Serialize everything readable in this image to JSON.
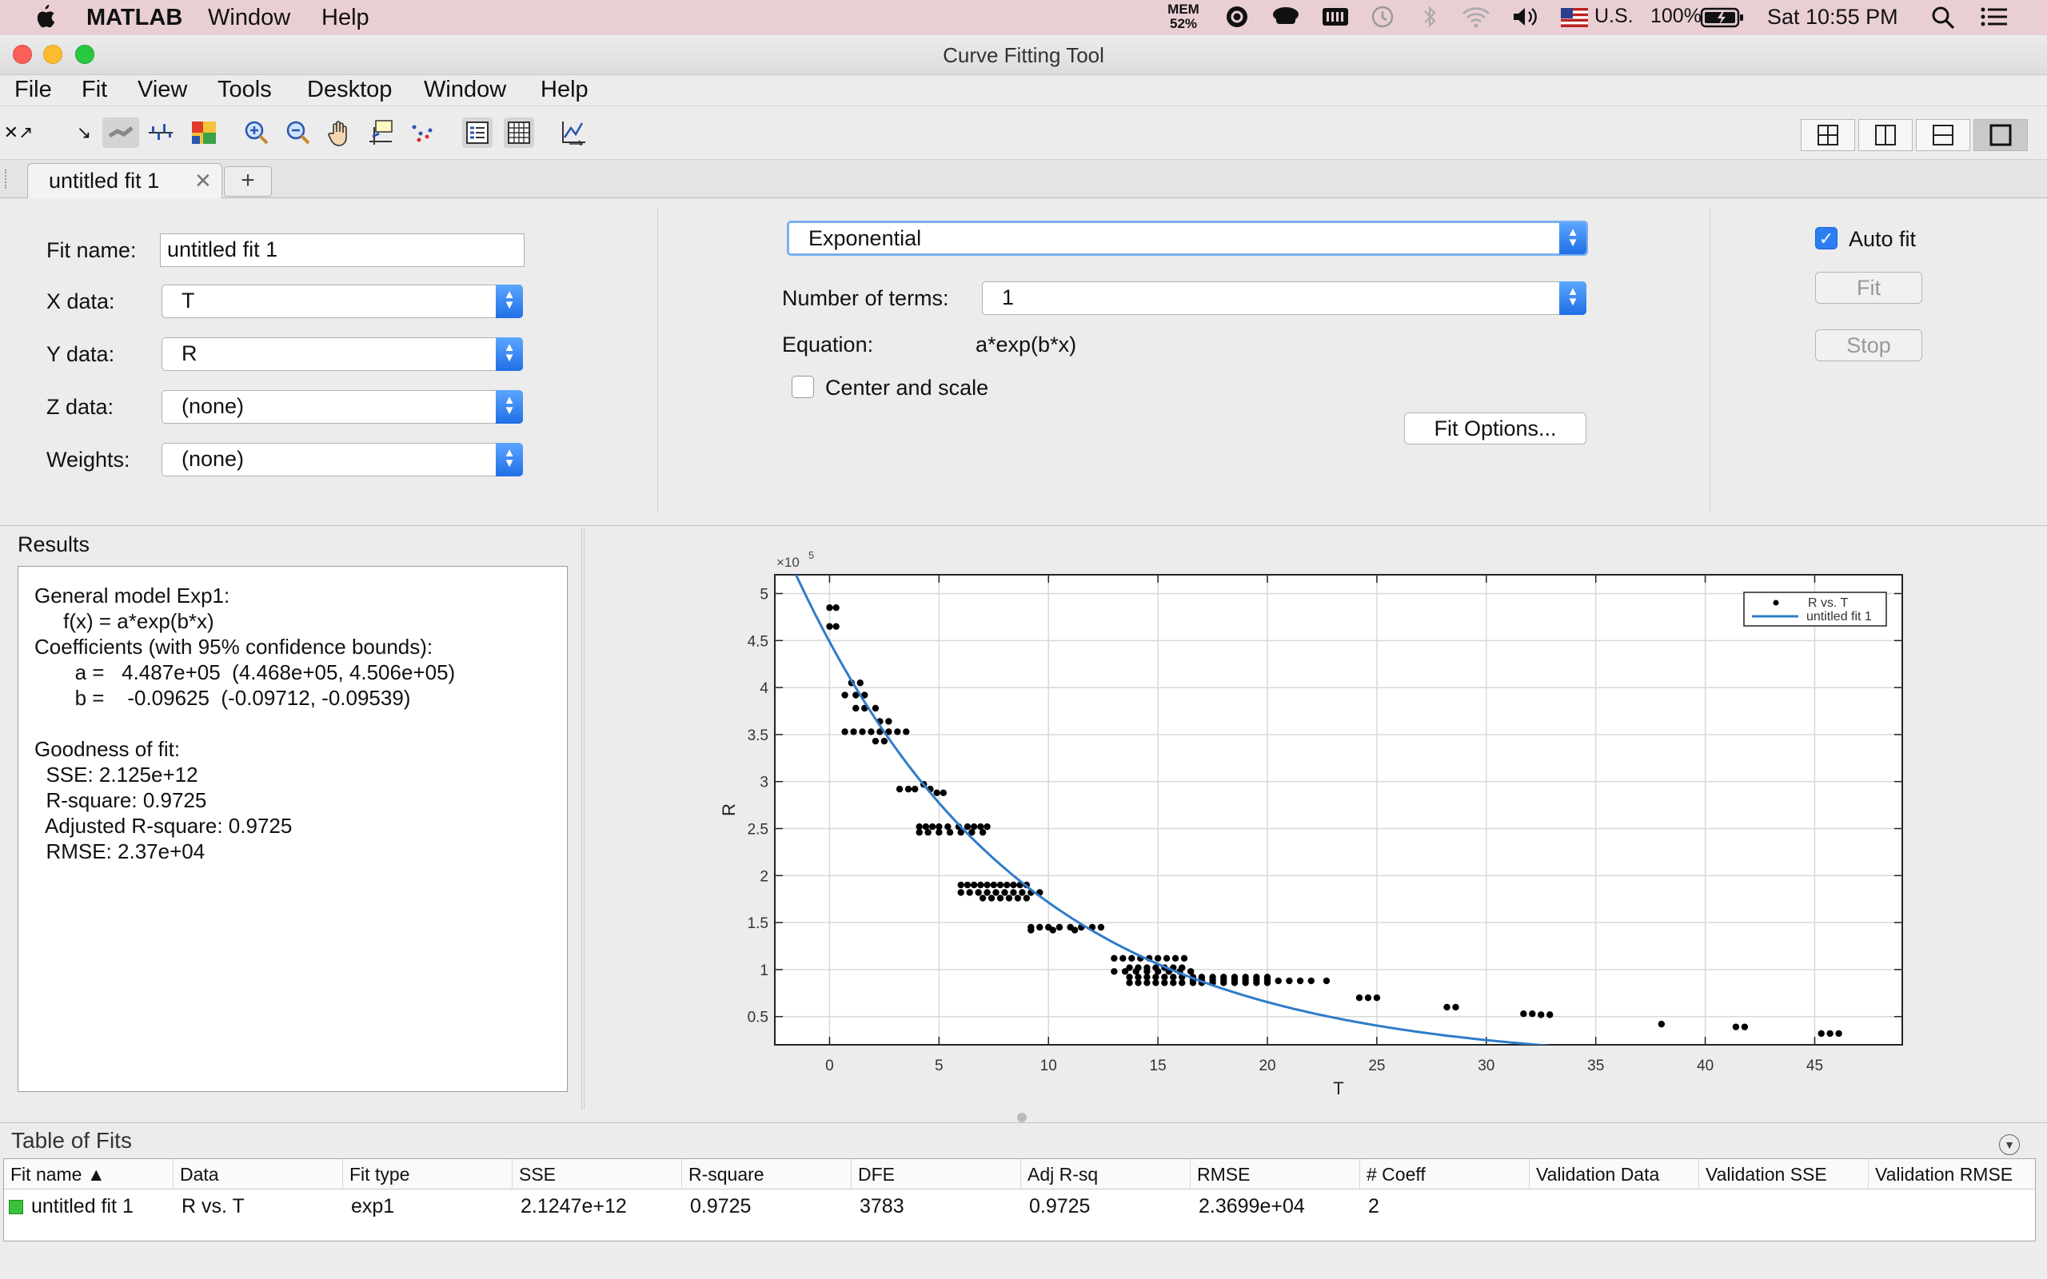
{
  "menubar": {
    "app": "MATLAB",
    "items": [
      "Window",
      "Help"
    ],
    "mem_label": "MEM",
    "mem_value": "52%",
    "input_source": "U.S.",
    "battery": "100%",
    "clock": "Sat 10:55 PM"
  },
  "window": {
    "title": "Curve Fitting Tool"
  },
  "app_menu": [
    "File",
    "Fit",
    "View",
    "Tools",
    "Desktop",
    "Window",
    "Help"
  ],
  "tabs": {
    "active_label": "untitled fit 1",
    "add_label": "+"
  },
  "settings": {
    "fit_name_label": "Fit name:",
    "fit_name_value": "untitled fit 1",
    "x_label": "X data:",
    "x_value": "T",
    "y_label": "Y data:",
    "y_value": "R",
    "z_label": "Z data:",
    "z_value": "(none)",
    "weights_label": "Weights:",
    "weights_value": "(none)",
    "fit_type": "Exponential",
    "terms_label": "Number of terms:",
    "terms_value": "1",
    "equation_label": "Equation:",
    "equation_value": "a*exp(b*x)",
    "center_scale_label": "Center and scale",
    "center_scale_checked": false,
    "fit_options_label": "Fit Options...",
    "auto_fit_label": "Auto fit",
    "auto_fit_checked": true,
    "fit_button": "Fit",
    "stop_button": "Stop"
  },
  "results": {
    "title": "Results",
    "text": "General model Exp1:\n     f(x) = a*exp(b*x)\nCoefficients (with 95% confidence bounds):\n       a =   4.487e+05  (4.468e+05, 4.506e+05)\n       b =    -0.09625  (-0.09712, -0.09539)\n\nGoodness of fit:\n  SSE: 2.125e+12\n  R-square: 0.9725\n  Adjusted R-square: 0.9725\n  RMSE: 2.37e+04"
  },
  "chart_data": {
    "type": "scatter",
    "xlabel": "T",
    "ylabel": "R",
    "y_exponent_label": "×10",
    "y_exponent_power": "5",
    "xlim": [
      -2.5,
      49
    ],
    "ylim": [
      0.2,
      5.2
    ],
    "xticks": [
      "0",
      "5",
      "10",
      "15",
      "20",
      "25",
      "30",
      "35",
      "40",
      "45"
    ],
    "yticks": [
      "0.5",
      "1",
      "1.5",
      "2",
      "2.5",
      "3",
      "3.5",
      "4",
      "4.5",
      "5"
    ],
    "grid": true,
    "legend_position": "top-right",
    "series": [
      {
        "name": "R vs. T",
        "kind": "points",
        "color": "#000000",
        "points": [
          [
            0,
            4.85
          ],
          [
            0.3,
            4.85
          ],
          [
            0,
            4.65
          ],
          [
            0.3,
            4.65
          ],
          [
            1,
            4.05
          ],
          [
            1.4,
            4.05
          ],
          [
            0.7,
            3.92
          ],
          [
            1.2,
            3.92
          ],
          [
            1.6,
            3.92
          ],
          [
            1.2,
            3.78
          ],
          [
            1.6,
            3.78
          ],
          [
            2.1,
            3.78
          ],
          [
            2.3,
            3.64
          ],
          [
            2.7,
            3.64
          ],
          [
            0.7,
            3.53
          ],
          [
            1.1,
            3.53
          ],
          [
            1.5,
            3.53
          ],
          [
            1.9,
            3.53
          ],
          [
            2.3,
            3.53
          ],
          [
            2.7,
            3.53
          ],
          [
            3.1,
            3.53
          ],
          [
            3.5,
            3.53
          ],
          [
            2.1,
            3.43
          ],
          [
            2.5,
            3.43
          ],
          [
            3.2,
            2.92
          ],
          [
            3.6,
            2.92
          ],
          [
            3.9,
            2.92
          ],
          [
            4.3,
            2.97
          ],
          [
            4.6,
            2.92
          ],
          [
            4.9,
            2.88
          ],
          [
            5.2,
            2.88
          ],
          [
            4.1,
            2.52
          ],
          [
            4.4,
            2.52
          ],
          [
            4.7,
            2.52
          ],
          [
            5.0,
            2.52
          ],
          [
            5.4,
            2.52
          ],
          [
            5.9,
            2.52
          ],
          [
            6.3,
            2.52
          ],
          [
            6.6,
            2.52
          ],
          [
            6.9,
            2.52
          ],
          [
            7.2,
            2.52
          ],
          [
            4.1,
            2.46
          ],
          [
            4.5,
            2.46
          ],
          [
            5.0,
            2.46
          ],
          [
            5.5,
            2.46
          ],
          [
            6.0,
            2.46
          ],
          [
            6.5,
            2.46
          ],
          [
            7.0,
            2.46
          ],
          [
            6.0,
            1.9
          ],
          [
            6.3,
            1.9
          ],
          [
            6.6,
            1.9
          ],
          [
            6.9,
            1.9
          ],
          [
            7.2,
            1.9
          ],
          [
            7.5,
            1.9
          ],
          [
            7.8,
            1.9
          ],
          [
            8.1,
            1.9
          ],
          [
            8.4,
            1.9
          ],
          [
            8.7,
            1.9
          ],
          [
            9.0,
            1.9
          ],
          [
            6.0,
            1.82
          ],
          [
            6.4,
            1.82
          ],
          [
            6.8,
            1.82
          ],
          [
            7.2,
            1.82
          ],
          [
            7.6,
            1.82
          ],
          [
            8.0,
            1.82
          ],
          [
            8.4,
            1.82
          ],
          [
            8.8,
            1.82
          ],
          [
            9.2,
            1.82
          ],
          [
            9.6,
            1.82
          ],
          [
            7.0,
            1.76
          ],
          [
            7.4,
            1.76
          ],
          [
            7.8,
            1.76
          ],
          [
            8.2,
            1.76
          ],
          [
            8.6,
            1.76
          ],
          [
            9.0,
            1.76
          ],
          [
            9.2,
            1.45
          ],
          [
            9.6,
            1.45
          ],
          [
            10.0,
            1.45
          ],
          [
            10.5,
            1.45
          ],
          [
            11.0,
            1.45
          ],
          [
            11.5,
            1.45
          ],
          [
            12.0,
            1.45
          ],
          [
            12.4,
            1.45
          ],
          [
            9.2,
            1.42
          ],
          [
            10.2,
            1.42
          ],
          [
            11.2,
            1.42
          ],
          [
            13.0,
            1.12
          ],
          [
            13.4,
            1.12
          ],
          [
            13.8,
            1.12
          ],
          [
            14.2,
            1.12
          ],
          [
            14.6,
            1.12
          ],
          [
            15.0,
            1.12
          ],
          [
            15.4,
            1.12
          ],
          [
            15.8,
            1.12
          ],
          [
            16.2,
            1.12
          ],
          [
            13.0,
            0.98
          ],
          [
            13.5,
            0.98
          ],
          [
            14.0,
            0.98
          ],
          [
            14.5,
            0.98
          ],
          [
            15.0,
            0.98
          ],
          [
            15.5,
            0.98
          ],
          [
            16.0,
            0.98
          ],
          [
            16.5,
            0.98
          ],
          [
            13.7,
            1.02
          ],
          [
            14.1,
            1.02
          ],
          [
            14.5,
            1.02
          ],
          [
            14.9,
            1.02
          ],
          [
            15.3,
            1.02
          ],
          [
            15.7,
            1.02
          ],
          [
            16.1,
            1.02
          ],
          [
            13.7,
            0.92
          ],
          [
            14.1,
            0.92
          ],
          [
            14.5,
            0.92
          ],
          [
            14.9,
            0.92
          ],
          [
            15.3,
            0.92
          ],
          [
            15.7,
            0.92
          ],
          [
            16.1,
            0.92
          ],
          [
            16.6,
            0.92
          ],
          [
            17.0,
            0.92
          ],
          [
            17.5,
            0.92
          ],
          [
            18.0,
            0.92
          ],
          [
            18.5,
            0.92
          ],
          [
            19.0,
            0.92
          ],
          [
            19.5,
            0.92
          ],
          [
            20.0,
            0.92
          ],
          [
            13.7,
            0.86
          ],
          [
            14.1,
            0.86
          ],
          [
            14.5,
            0.86
          ],
          [
            14.9,
            0.86
          ],
          [
            15.3,
            0.86
          ],
          [
            15.7,
            0.86
          ],
          [
            16.1,
            0.86
          ],
          [
            16.6,
            0.86
          ],
          [
            17.0,
            0.86
          ],
          [
            17.5,
            0.86
          ],
          [
            18.0,
            0.86
          ],
          [
            18.5,
            0.86
          ],
          [
            19.0,
            0.86
          ],
          [
            19.5,
            0.86
          ],
          [
            20.0,
            0.86
          ],
          [
            16.6,
            0.89
          ],
          [
            17.0,
            0.89
          ],
          [
            17.5,
            0.89
          ],
          [
            18.0,
            0.89
          ],
          [
            18.5,
            0.89
          ],
          [
            19.0,
            0.89
          ],
          [
            19.5,
            0.89
          ],
          [
            20.0,
            0.89
          ],
          [
            20.5,
            0.88
          ],
          [
            21.0,
            0.88
          ],
          [
            21.5,
            0.88
          ],
          [
            22.0,
            0.88
          ],
          [
            22.7,
            0.88
          ],
          [
            24.2,
            0.7
          ],
          [
            24.6,
            0.7
          ],
          [
            25.0,
            0.7
          ],
          [
            28.2,
            0.6
          ],
          [
            28.6,
            0.6
          ],
          [
            31.7,
            0.53
          ],
          [
            32.1,
            0.53
          ],
          [
            32.5,
            0.52
          ],
          [
            32.9,
            0.52
          ],
          [
            38.0,
            0.42
          ],
          [
            41.4,
            0.39
          ],
          [
            41.8,
            0.39
          ],
          [
            45.3,
            0.32
          ],
          [
            45.7,
            0.32
          ],
          [
            46.1,
            0.32
          ]
        ]
      },
      {
        "name": "untitled fit 1",
        "kind": "curve",
        "color": "#2f7cc9",
        "equation": "a*exp(b*x)",
        "a": 448700,
        "b": -0.09625
      }
    ]
  },
  "table_of_fits": {
    "title": "Table of Fits",
    "columns": [
      "Fit name ▲",
      "Data",
      "Fit type",
      "SSE",
      "R-square",
      "DFE",
      "Adj R-sq",
      "RMSE",
      "# Coeff",
      "Validation Data",
      "Validation SSE",
      "Validation RMSE"
    ],
    "rows": [
      [
        "untitled fit 1",
        "R vs. T",
        "exp1",
        "2.1247e+12",
        "0.9725",
        "3783",
        "0.9725",
        "2.3699e+04",
        "2",
        "",
        "",
        ""
      ]
    ]
  },
  "colors": {
    "accent": "#1f6fe6",
    "fit_curve": "#2f7cc9",
    "menubar": "#e9cfd4"
  }
}
